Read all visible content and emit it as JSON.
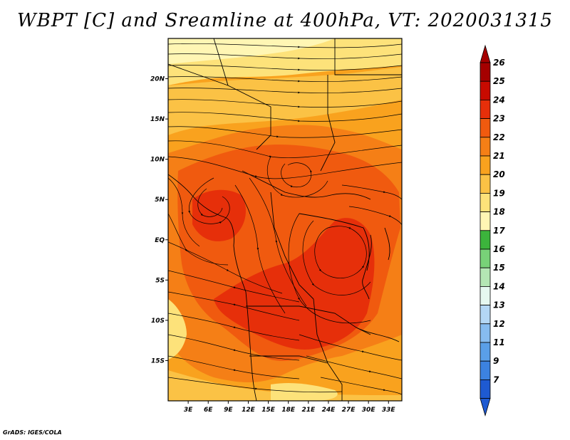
{
  "title": "WBPT [C] and Sreamline at 400hPa, VT: 2020031315",
  "credit": "GrADS: IGES/COLA",
  "map": {
    "lat_range": [
      -20,
      25
    ],
    "lon_range": [
      0,
      35
    ],
    "y_ticks": [
      {
        "lat": 20,
        "label": "20N"
      },
      {
        "lat": 15,
        "label": "15N"
      },
      {
        "lat": 10,
        "label": "10N"
      },
      {
        "lat": 5,
        "label": "5N"
      },
      {
        "lat": 0,
        "label": "EQ"
      },
      {
        "lat": -5,
        "label": "5S"
      },
      {
        "lat": -10,
        "label": "10S"
      },
      {
        "lat": -15,
        "label": "15S"
      }
    ],
    "x_ticks": [
      {
        "lon": 3,
        "label": "3E"
      },
      {
        "lon": 6,
        "label": "6E"
      },
      {
        "lon": 9,
        "label": "9E"
      },
      {
        "lon": 12,
        "label": "12E"
      },
      {
        "lon": 15,
        "label": "15E"
      },
      {
        "lon": 18,
        "label": "18E"
      },
      {
        "lon": 21,
        "label": "21E"
      },
      {
        "lon": 24,
        "label": "24E"
      },
      {
        "lon": 27,
        "label": "27E"
      },
      {
        "lon": 30,
        "label": "30E"
      },
      {
        "lon": 33,
        "label": "33E"
      }
    ]
  },
  "colorbar": {
    "levels": [
      {
        "label": "26",
        "color": "#a50000"
      },
      {
        "label": "25",
        "color": "#c80a00"
      },
      {
        "label": "24",
        "color": "#e62f0a"
      },
      {
        "label": "23",
        "color": "#f05a0f"
      },
      {
        "label": "22",
        "color": "#f57f16"
      },
      {
        "label": "21",
        "color": "#f9a21e"
      },
      {
        "label": "20",
        "color": "#fbc245"
      },
      {
        "label": "19",
        "color": "#fde27a"
      },
      {
        "label": "18",
        "color": "#fff6b4"
      },
      {
        "label": "17",
        "color": "#3cb43c"
      },
      {
        "label": "16",
        "color": "#78d278"
      },
      {
        "label": "15",
        "color": "#b4e6b4"
      },
      {
        "label": "14",
        "color": "#e6f8f0"
      },
      {
        "label": "13",
        "color": "#b4d7f5"
      },
      {
        "label": "12",
        "color": "#87bcf0"
      },
      {
        "label": "11",
        "color": "#5a9fe8"
      },
      {
        "label": "9",
        "color": "#3c82e0"
      },
      {
        "label": "7",
        "color": "#1e5ad2"
      }
    ],
    "top_cap_color": "#a50000",
    "bottom_cap_color": "#1e5ad2"
  }
}
